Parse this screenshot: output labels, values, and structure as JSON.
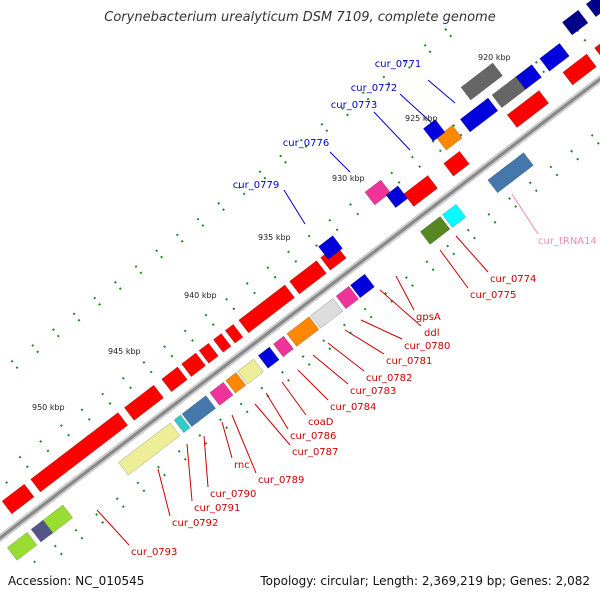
{
  "title": "Corynebacterium urealyticum DSM 7109, complete genome",
  "footer": {
    "accession": "Accession: NC_010545",
    "summary": "Topology: circular; Length: 2,369,219 bp; Genes: 2,082"
  },
  "tick_labels": [
    "920 kbp",
    "925 kbp",
    "930 kbp",
    "935 kbp",
    "940 kbp",
    "945 kbp",
    "950 kbp"
  ],
  "colors": {
    "forward_label": "#0000cc",
    "reverse_label": "#cc0000",
    "rna_label": "#ee88bb",
    "backbone": "#888888",
    "tick_dot": "#228822"
  },
  "labels_forward": [
    "cur_0771",
    "cur_0772",
    "cur_0773",
    "cur_0776",
    "cur_0779"
  ],
  "labels_reverse": [
    "cur_0774",
    "cur_0775",
    "gpsA",
    "ddl",
    "cur_0780",
    "cur_0781",
    "cur_0782",
    "cur_0783",
    "cur_0784",
    "coaD",
    "cur_0786",
    "cur_0787",
    "cur_0789",
    "rnc",
    "cur_0790",
    "cur_0791",
    "cur_0792",
    "cur_0793"
  ],
  "labels_rna": [
    "cur_tRNA14"
  ]
}
